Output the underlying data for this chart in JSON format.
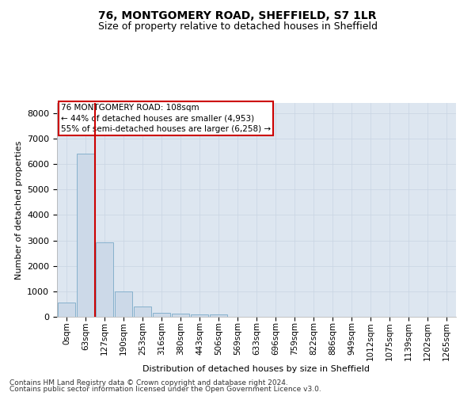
{
  "title1": "76, MONTGOMERY ROAD, SHEFFIELD, S7 1LR",
  "title2": "Size of property relative to detached houses in Sheffield",
  "xlabel": "Distribution of detached houses by size in Sheffield",
  "ylabel": "Number of detached properties",
  "footnote1": "Contains HM Land Registry data © Crown copyright and database right 2024.",
  "footnote2": "Contains public sector information licensed under the Open Government Licence v3.0.",
  "bar_labels": [
    "0sqm",
    "63sqm",
    "127sqm",
    "190sqm",
    "253sqm",
    "316sqm",
    "380sqm",
    "443sqm",
    "506sqm",
    "569sqm",
    "633sqm",
    "696sqm",
    "759sqm",
    "822sqm",
    "886sqm",
    "949sqm",
    "1012sqm",
    "1075sqm",
    "1139sqm",
    "1202sqm",
    "1265sqm"
  ],
  "bar_values": [
    560,
    6400,
    2920,
    1000,
    400,
    165,
    125,
    100,
    80,
    0,
    0,
    0,
    0,
    0,
    0,
    0,
    0,
    0,
    0,
    0,
    0
  ],
  "bar_color": "#ccd9e8",
  "bar_edge_color": "#7aaac8",
  "ylim_max": 8400,
  "yticks": [
    0,
    1000,
    2000,
    3000,
    4000,
    5000,
    6000,
    7000,
    8000
  ],
  "property_line_x": 1.5,
  "annotation_text1": "76 MONTGOMERY ROAD: 108sqm",
  "annotation_text2": "← 44% of detached houses are smaller (4,953)",
  "annotation_text3": "55% of semi-detached houses are larger (6,258) →",
  "annotation_box_facecolor": "#ffffff",
  "annotation_box_edgecolor": "#cc0000",
  "vline_color": "#cc0000",
  "grid_color": "#c8d4e3",
  "background_color": "#dde6f0",
  "title1_fontsize": 10,
  "title2_fontsize": 9,
  "ylabel_fontsize": 8,
  "xlabel_fontsize": 8,
  "footnote_fontsize": 6.5,
  "tick_fontsize": 8,
  "xtick_fontsize": 7.5
}
